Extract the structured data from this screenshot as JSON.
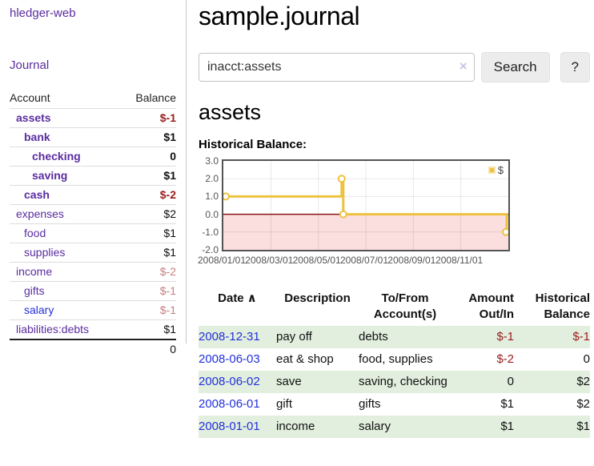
{
  "sidebar": {
    "brand": "hledger-web",
    "nav": [
      {
        "label": "Journal"
      }
    ],
    "accounts_table": {
      "headers": [
        "Account",
        "Balance"
      ],
      "rows": [
        {
          "name": "assets",
          "balance": "$-1",
          "level": 0,
          "bold": true,
          "balance_style": "neg"
        },
        {
          "name": "bank",
          "balance": "$1",
          "level": 1,
          "bold": true,
          "balance_style": "pos"
        },
        {
          "name": "checking",
          "balance": "0",
          "level": 2,
          "bold": true,
          "balance_style": "pos"
        },
        {
          "name": "saving",
          "balance": "$1",
          "level": 2,
          "bold": true,
          "balance_style": "pos"
        },
        {
          "name": "cash",
          "balance": "$-2",
          "level": 1,
          "bold": true,
          "balance_style": "neg"
        },
        {
          "name": "expenses",
          "balance": "$2",
          "level": 0,
          "bold": false,
          "balance_style": "pos"
        },
        {
          "name": "food",
          "balance": "$1",
          "level": 1,
          "bold": false,
          "balance_style": "pos"
        },
        {
          "name": "supplies",
          "balance": "$1",
          "level": 1,
          "bold": false,
          "balance_style": "pos"
        },
        {
          "name": "income",
          "balance": "$-2",
          "level": 0,
          "bold": false,
          "balance_style": "neg-soft"
        },
        {
          "name": "gifts",
          "balance": "$-1",
          "level": 1,
          "bold": false,
          "balance_style": "neg-soft"
        },
        {
          "name": "salary",
          "balance": "$-1",
          "level": 1,
          "bold": false,
          "balance_style": "neg-soft",
          "link_style": "unvisited"
        },
        {
          "name": "liabilities:debts",
          "balance": "$1",
          "level": 0,
          "bold": false,
          "balance_style": "pos"
        }
      ],
      "total": "0"
    }
  },
  "header": {
    "title": "sample.journal"
  },
  "search": {
    "value": "inacct:assets",
    "clear_icon": "×",
    "button": "Search",
    "help_button": "?"
  },
  "account_page": {
    "heading": "assets",
    "chart_label": "Historical Balance:"
  },
  "chart_data": {
    "type": "line",
    "step": true,
    "title": "Historical Balance",
    "series": [
      {
        "name": "$",
        "color": "#edc240",
        "points": [
          [
            "2008-01-01",
            1
          ],
          [
            "2008-06-01",
            2
          ],
          [
            "2008-06-03",
            0
          ],
          [
            "2008-12-31",
            -1
          ]
        ]
      }
    ],
    "x_range": [
      "2008-01-01",
      "2009-01-01"
    ],
    "ylim": [
      -2,
      3
    ],
    "y_ticks": [
      "3.0",
      "2.0",
      "1.0",
      "0.0",
      "-1.0",
      "-2.0"
    ],
    "x_ticks": [
      "2008/01/01",
      "2008/03/01",
      "2008/05/01",
      "2008/07/01",
      "2008/09/01",
      "2008/11/01"
    ],
    "grid": true,
    "legend": {
      "label": "$",
      "position": "top-right"
    },
    "zero_line_color": "#871616",
    "negative_region_color": "#fbdede"
  },
  "register": {
    "headers": {
      "date": "Date",
      "sort_indicator": "∧",
      "description": "Description",
      "account": "To/From Account(s)",
      "amount": "Amount Out/In",
      "balance": "Historical Balance"
    },
    "rows": [
      {
        "date": "2008-12-31",
        "description": "pay off",
        "account": "debts",
        "amount": "$-1",
        "amount_negative": true,
        "balance": "$-1",
        "balance_negative": true
      },
      {
        "date": "2008-06-03",
        "description": "eat & shop",
        "account": "food, supplies",
        "amount": "$-2",
        "amount_negative": true,
        "balance": "0",
        "balance_negative": false
      },
      {
        "date": "2008-06-02",
        "description": "save",
        "account": "saving, checking",
        "amount": "0",
        "amount_negative": false,
        "balance": "$2",
        "balance_negative": false
      },
      {
        "date": "2008-06-01",
        "description": "gift",
        "account": "gifts",
        "amount": "$1",
        "amount_negative": false,
        "balance": "$2",
        "balance_negative": false
      },
      {
        "date": "2008-01-01",
        "description": "income",
        "account": "salary",
        "amount": "$1",
        "amount_negative": false,
        "balance": "$1",
        "balance_negative": false
      }
    ]
  },
  "colors": {
    "link_purple": "#5a2ca0",
    "link_blue": "#2230dd",
    "negative_strong": "#9b1c1c",
    "negative_soft": "#c67f7f",
    "row_stripe_green": "#e2efde",
    "chart_line_gold": "#edc240"
  }
}
